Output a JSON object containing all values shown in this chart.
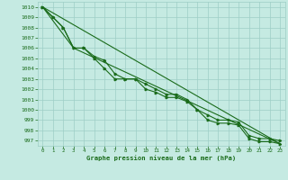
{
  "xlabel": "Graphe pression niveau de la mer (hPa)",
  "ylim": [
    996.5,
    1010.5
  ],
  "xlim": [
    -0.5,
    23.5
  ],
  "yticks": [
    997,
    998,
    999,
    1000,
    1001,
    1002,
    1003,
    1004,
    1005,
    1006,
    1007,
    1008,
    1009,
    1010
  ],
  "xticks": [
    0,
    1,
    2,
    3,
    4,
    5,
    6,
    7,
    8,
    9,
    10,
    11,
    12,
    13,
    14,
    15,
    16,
    17,
    18,
    19,
    20,
    21,
    22,
    23
  ],
  "bg_color": "#c5eae2",
  "grid_color": "#9ecec6",
  "line_color": "#1a6b1a",
  "series_marked": [
    [
      1010,
      1009,
      1008,
      1006,
      1006,
      1005,
      1004,
      1003,
      1003,
      1003,
      1002.5,
      1002,
      1001.5,
      1001.5,
      1001,
      1000,
      999,
      998.7,
      998.7,
      998.5,
      997.2,
      996.9,
      996.9,
      996.7
    ],
    [
      1010,
      1009,
      1008,
      1006,
      1006,
      1005.2,
      1004.8,
      1003.5,
      1003,
      1003,
      1002,
      1001.7,
      1001.2,
      1001.2,
      1000.8,
      1000,
      999.5,
      999,
      999,
      998.8,
      997.5,
      997.2,
      997.2,
      997.0
    ]
  ],
  "series_plain": [
    [
      1010,
      null,
      null,
      null,
      null,
      null,
      null,
      null,
      null,
      null,
      null,
      null,
      null,
      null,
      null,
      null,
      null,
      null,
      null,
      null,
      null,
      null,
      null,
      996.7
    ],
    [
      1010,
      null,
      null,
      1006,
      null,
      null,
      null,
      null,
      null,
      null,
      null,
      null,
      null,
      null,
      null,
      null,
      null,
      null,
      null,
      null,
      null,
      null,
      null,
      996.7
    ]
  ]
}
